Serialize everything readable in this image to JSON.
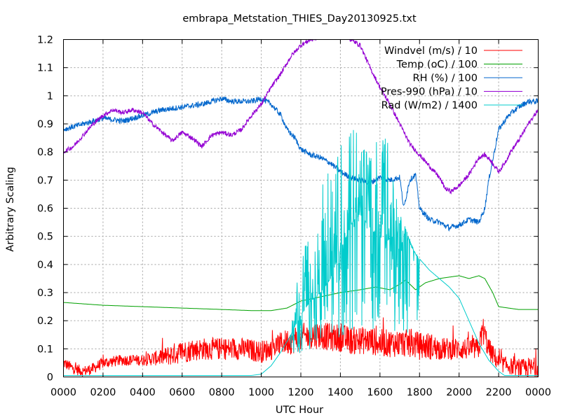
{
  "chart_data": {
    "type": "line",
    "title": "embrapa_Metstation_THIES_Day20130925.txt",
    "xlabel": "UTC Hour",
    "ylabel": "Arbitrary Scaling",
    "xlim": [
      0,
      24
    ],
    "ylim": [
      0,
      1.2
    ],
    "x_ticks": [
      0,
      2,
      4,
      6,
      8,
      10,
      12,
      14,
      16,
      18,
      20,
      22,
      24
    ],
    "x_tick_labels": [
      "0000",
      "0200",
      "0400",
      "0600",
      "0800",
      "1000",
      "1200",
      "1400",
      "1600",
      "1800",
      "2000",
      "2200",
      "0000"
    ],
    "y_ticks": [
      0,
      0.1,
      0.2,
      0.3,
      0.4,
      0.5,
      0.6,
      0.7,
      0.8,
      0.9,
      1,
      1.1,
      1.2
    ],
    "y_tick_labels": [
      "0",
      "0.1",
      "0.2",
      "0.3",
      "0.4",
      "0.5",
      "0.6",
      "0.7",
      "0.8",
      "0.9",
      "1",
      "1.1",
      "1.2"
    ],
    "grid": true,
    "legend_position": "top-right",
    "series": [
      {
        "name": "Windvel (m/s) / 10",
        "color": "#ff0000",
        "style": "noisy",
        "x": [
          0,
          0.5,
          1,
          1.5,
          2,
          3,
          4,
          5,
          5.5,
          6,
          7,
          8,
          9,
          10,
          10.5,
          11,
          11.5,
          12,
          12.5,
          13,
          13.5,
          14,
          14.5,
          15,
          15.5,
          16,
          16.5,
          17,
          17.5,
          18,
          18.5,
          19,
          19.5,
          20,
          20.5,
          21,
          21.2,
          21.5,
          22,
          22.5,
          23,
          23.5,
          24
        ],
        "y": [
          0.05,
          0.03,
          0.02,
          0.03,
          0.05,
          0.06,
          0.06,
          0.07,
          0.08,
          0.09,
          0.1,
          0.1,
          0.1,
          0.09,
          0.1,
          0.12,
          0.13,
          0.14,
          0.15,
          0.15,
          0.14,
          0.14,
          0.13,
          0.13,
          0.13,
          0.12,
          0.12,
          0.12,
          0.12,
          0.11,
          0.11,
          0.1,
          0.1,
          0.1,
          0.1,
          0.1,
          0.17,
          0.1,
          0.05,
          0.04,
          0.03,
          0.03,
          0.03
        ],
        "amplitude": [
          0.02,
          0.02,
          0.02,
          0.02,
          0.02,
          0.02,
          0.02,
          0.03,
          0.04,
          0.04,
          0.04,
          0.04,
          0.04,
          0.04,
          0.04,
          0.04,
          0.05,
          0.05,
          0.05,
          0.05,
          0.05,
          0.05,
          0.05,
          0.05,
          0.05,
          0.05,
          0.05,
          0.05,
          0.05,
          0.05,
          0.05,
          0.04,
          0.04,
          0.04,
          0.04,
          0.04,
          0.05,
          0.04,
          0.03,
          0.03,
          0.03,
          0.04,
          0.04
        ]
      },
      {
        "name": "Temp (oC) / 100",
        "color": "#00a000",
        "style": "smooth",
        "x": [
          0,
          2,
          4,
          6,
          8,
          9.5,
          10.5,
          11.3,
          12,
          13,
          14,
          15,
          15.8,
          16.5,
          17,
          17.3,
          17.8,
          18.3,
          19,
          20,
          20.5,
          21,
          21.3,
          21.7,
          22,
          23,
          24
        ],
        "y": [
          0.265,
          0.255,
          0.25,
          0.245,
          0.24,
          0.236,
          0.236,
          0.245,
          0.27,
          0.285,
          0.3,
          0.31,
          0.32,
          0.31,
          0.33,
          0.345,
          0.31,
          0.335,
          0.35,
          0.36,
          0.35,
          0.36,
          0.35,
          0.3,
          0.25,
          0.24,
          0.24
        ]
      },
      {
        "name": "RH (%) / 100",
        "color": "#0066cc",
        "style": "jitter",
        "x": [
          0,
          0.5,
          1,
          1.5,
          2,
          3,
          4,
          5,
          6,
          7,
          7.5,
          8,
          8.5,
          9,
          9.5,
          10,
          10.5,
          11,
          11.3,
          11.7,
          12,
          12.5,
          13,
          13.5,
          14,
          14.5,
          15,
          15.5,
          16,
          16.5,
          17,
          17.2,
          17.5,
          17.8,
          18,
          18.5,
          19,
          19.5,
          20,
          20.5,
          21,
          21.3,
          21.5,
          22,
          22.5,
          23,
          23.5,
          24
        ],
        "y": [
          0.88,
          0.89,
          0.9,
          0.91,
          0.92,
          0.91,
          0.93,
          0.95,
          0.96,
          0.97,
          0.98,
          0.99,
          0.98,
          0.98,
          0.98,
          0.99,
          0.97,
          0.93,
          0.88,
          0.85,
          0.81,
          0.79,
          0.78,
          0.76,
          0.73,
          0.71,
          0.7,
          0.69,
          0.71,
          0.7,
          0.71,
          0.6,
          0.7,
          0.72,
          0.6,
          0.56,
          0.55,
          0.53,
          0.54,
          0.56,
          0.55,
          0.6,
          0.7,
          0.88,
          0.93,
          0.96,
          0.98,
          0.98
        ],
        "amplitude": 0.01
      },
      {
        "name": "Pres-990 (hPa) / 10",
        "color": "#9400d3",
        "style": "jitter",
        "x": [
          0,
          0.5,
          1,
          1.5,
          2,
          2.5,
          3,
          3.5,
          4,
          4.5,
          5,
          5.5,
          6,
          6.5,
          7,
          7.5,
          8,
          8.5,
          9,
          9.5,
          10,
          10.5,
          11,
          11.5,
          12,
          12.5,
          13,
          13.5,
          14,
          14.5,
          15,
          15.5,
          16,
          16.5,
          17,
          17.5,
          18,
          18.5,
          19,
          19.3,
          19.6,
          20,
          20.5,
          21,
          21.3,
          21.6,
          22,
          22.3,
          22.6,
          23,
          23.5,
          24
        ],
        "y": [
          0.8,
          0.82,
          0.86,
          0.9,
          0.93,
          0.95,
          0.94,
          0.95,
          0.94,
          0.9,
          0.87,
          0.84,
          0.87,
          0.85,
          0.82,
          0.86,
          0.87,
          0.86,
          0.88,
          0.93,
          0.97,
          1.03,
          1.08,
          1.14,
          1.18,
          1.2,
          1.21,
          1.22,
          1.24,
          1.2,
          1.18,
          1.1,
          1.03,
          0.97,
          0.9,
          0.83,
          0.79,
          0.75,
          0.71,
          0.67,
          0.66,
          0.68,
          0.72,
          0.78,
          0.79,
          0.77,
          0.73,
          0.76,
          0.8,
          0.84,
          0.9,
          0.95
        ],
        "amplitude": 0.008
      },
      {
        "name": "Rad (W/m2) / 1400",
        "color": "#00cccc",
        "style": "spiky",
        "x": [
          0,
          9.5,
          10,
          10.5,
          11,
          11.5,
          12,
          12.5,
          13,
          13.5,
          14,
          14.3,
          14.6,
          15,
          15.3,
          15.6,
          16,
          16.3,
          16.6,
          17,
          17.3,
          17.6,
          18,
          18.5,
          19,
          19.5,
          20,
          20.5,
          21,
          21.5,
          22,
          22.3,
          24
        ],
        "y": [
          0.005,
          0.005,
          0.01,
          0.04,
          0.09,
          0.15,
          0.22,
          0.27,
          0.3,
          0.35,
          0.45,
          0.5,
          0.55,
          0.58,
          0.55,
          0.52,
          0.5,
          0.48,
          0.5,
          0.45,
          0.52,
          0.46,
          0.42,
          0.38,
          0.35,
          0.32,
          0.28,
          0.2,
          0.12,
          0.06,
          0.02,
          0.005,
          0.005
        ],
        "peaks": [
          0.25,
          0.45,
          0.53,
          0.72,
          0.75,
          0.88,
          0.9,
          0.8,
          0.86,
          0.85,
          0.6,
          0.5,
          0.4
        ],
        "peak_range": [
          11.5,
          18
        ]
      }
    ]
  }
}
